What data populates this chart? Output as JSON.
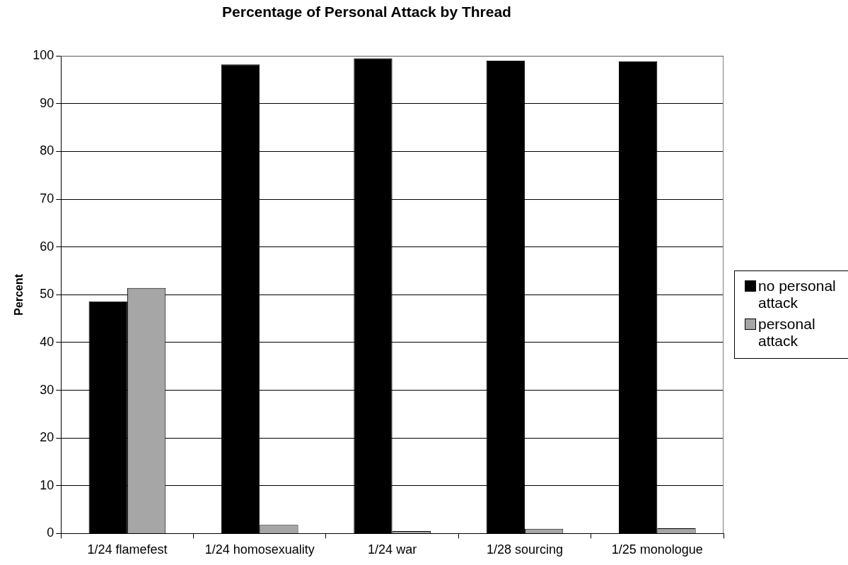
{
  "chart_data": {
    "type": "bar",
    "title": "Percentage of Personal Attack by Thread",
    "ylabel": "Percent",
    "categories": [
      "1/24 flamefest",
      "1/24 homosexuality",
      "1/24 war",
      "1/28 sourcing",
      "1/25 monologue"
    ],
    "series": [
      {
        "name": "no personal attack",
        "color": "#000000",
        "values": [
          48.6,
          98.2,
          99.5,
          99.0,
          98.9
        ]
      },
      {
        "name": "personal attack",
        "color": "#a6a6a6",
        "values": [
          51.4,
          1.8,
          0.5,
          1.0,
          1.1
        ]
      }
    ],
    "ylim": [
      0,
      100
    ],
    "yticks": [
      0,
      10,
      20,
      30,
      40,
      50,
      60,
      70,
      80,
      90,
      100
    ],
    "grid": "y",
    "legend": "right"
  }
}
